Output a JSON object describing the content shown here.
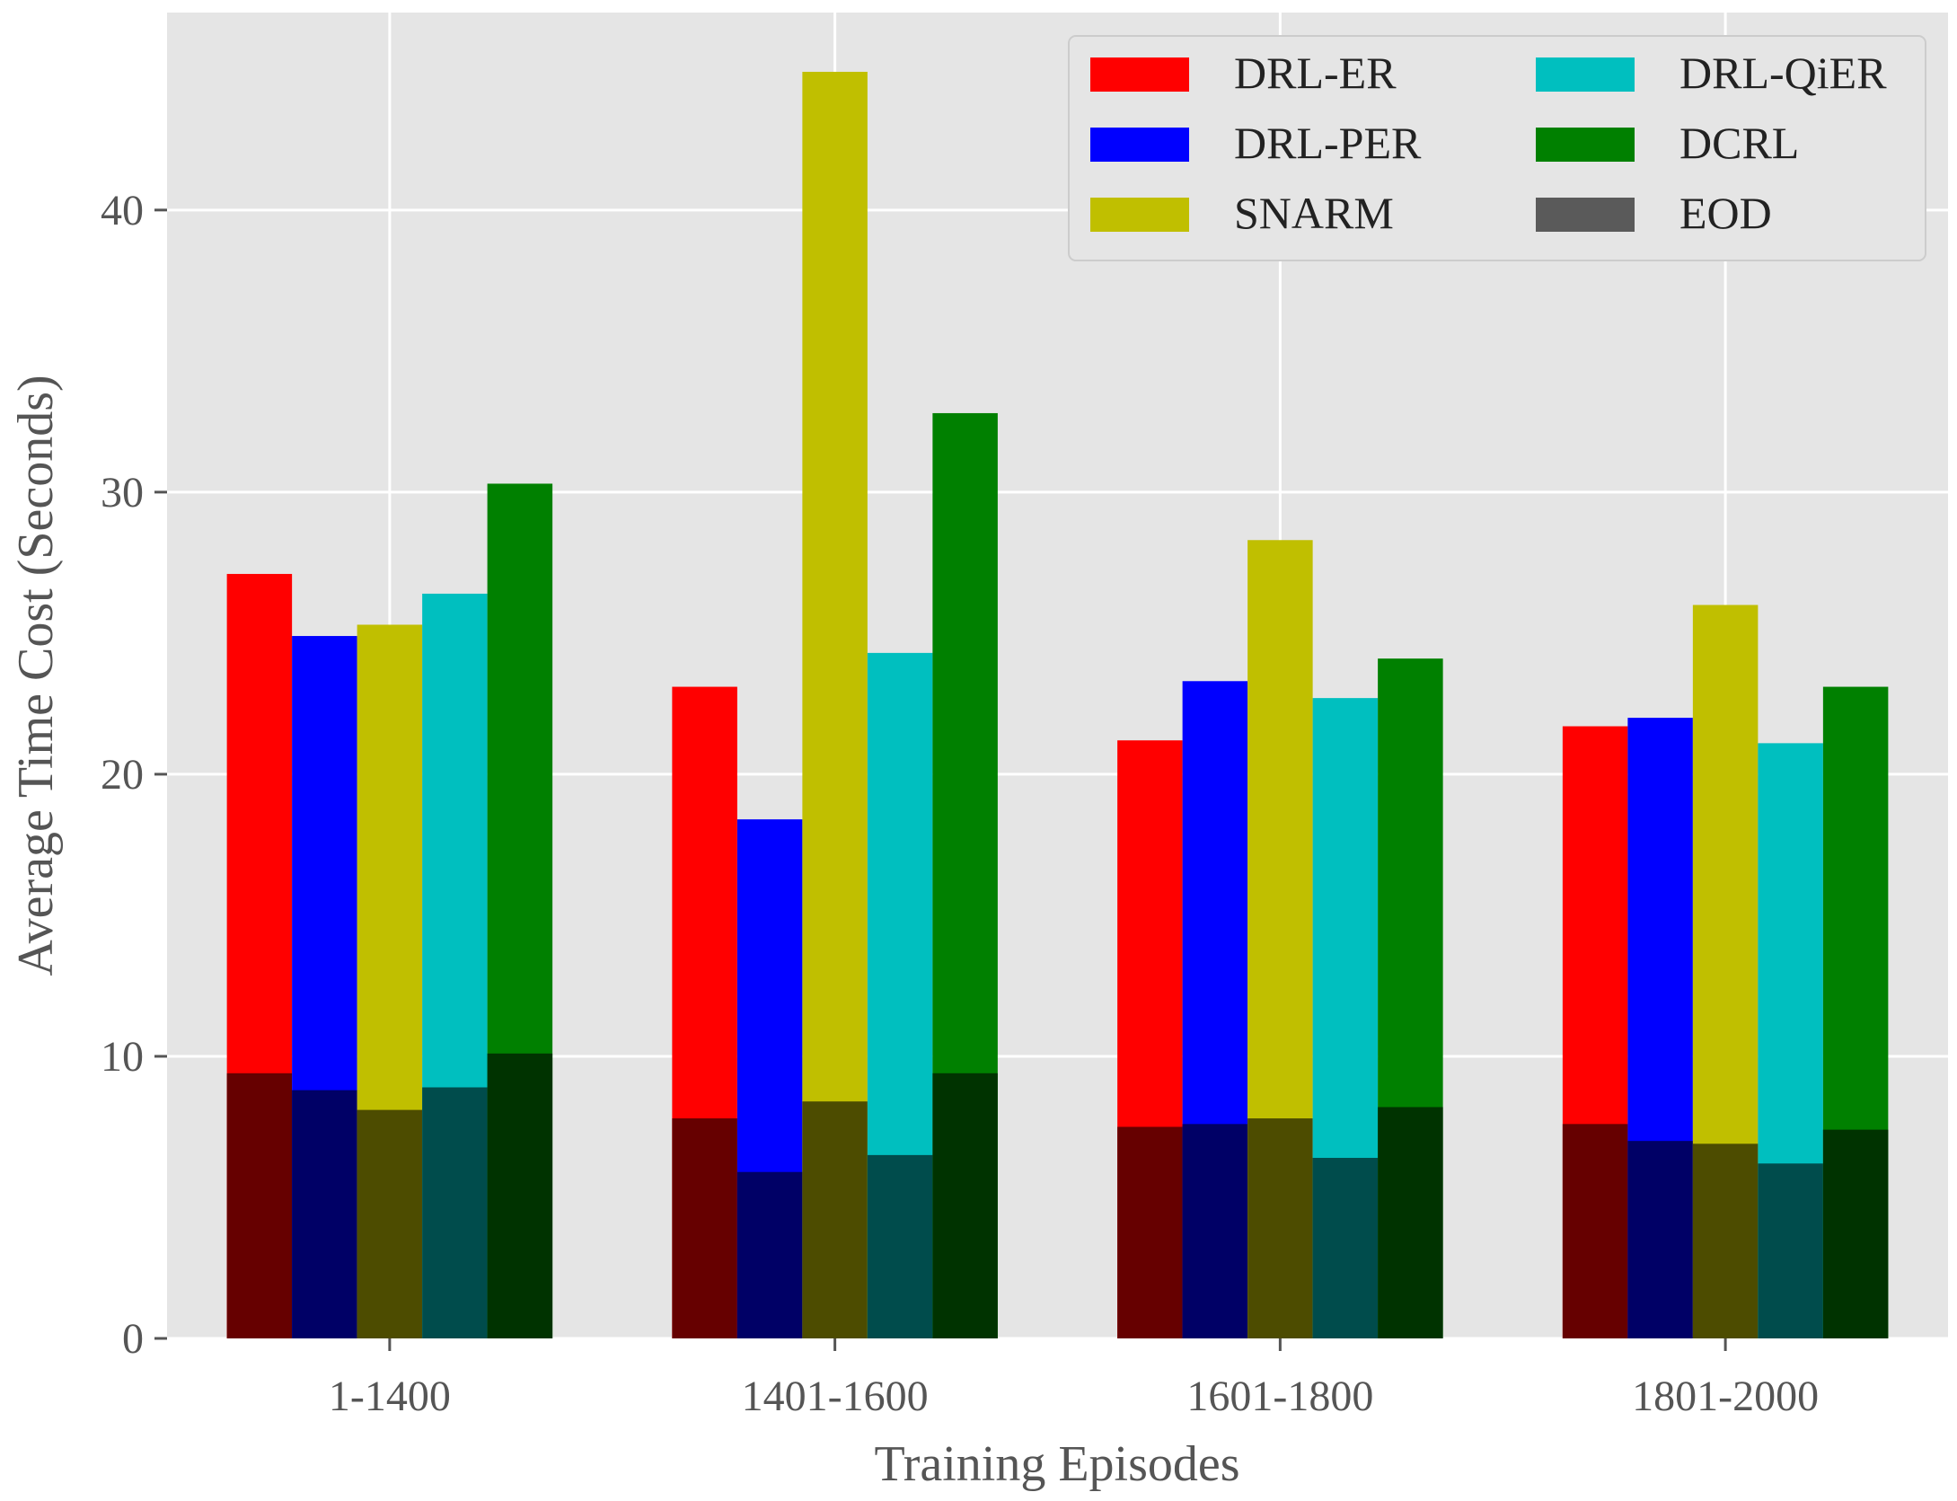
{
  "chart_data": {
    "type": "bar",
    "xlabel": "Training Episodes",
    "ylabel": "Average Time Cost (Seconds)",
    "ylim": [
      0,
      47
    ],
    "yticks": [
      0,
      10,
      20,
      30,
      40
    ],
    "grid": true,
    "legend_position": "top-right",
    "categories": [
      "1-1400",
      "1401-1600",
      "1601-1800",
      "1801-2000"
    ],
    "series": [
      {
        "name": "DRL-ER",
        "color": "#ff0000",
        "overlay_color": "#660000",
        "values": [
          27.1,
          23.1,
          21.2,
          21.7
        ],
        "eod_values": [
          9.4,
          7.8,
          7.5,
          7.6
        ]
      },
      {
        "name": "DRL-PER",
        "color": "#0000ff",
        "overlay_color": "#000066",
        "values": [
          24.9,
          18.4,
          23.3,
          22.0
        ],
        "eod_values": [
          8.8,
          5.9,
          7.6,
          7.0
        ]
      },
      {
        "name": "SNARM",
        "color": "#c0bf00",
        "overlay_color": "#4d4c00",
        "values": [
          25.3,
          44.9,
          28.3,
          26.0
        ],
        "eod_values": [
          8.1,
          8.4,
          7.8,
          6.9
        ]
      },
      {
        "name": "DRL-QiER",
        "color": "#00bfbf",
        "overlay_color": "#004c4c",
        "values": [
          26.4,
          24.3,
          22.7,
          21.1
        ],
        "eod_values": [
          8.9,
          6.5,
          6.4,
          6.2
        ]
      },
      {
        "name": "DCRL",
        "color": "#008000",
        "overlay_color": "#003300",
        "values": [
          30.3,
          32.8,
          24.1,
          23.1
        ],
        "eod_values": [
          10.1,
          9.4,
          8.2,
          7.4
        ]
      }
    ],
    "eod_legend": {
      "name": "EOD",
      "color": "#5a5a5a"
    }
  }
}
